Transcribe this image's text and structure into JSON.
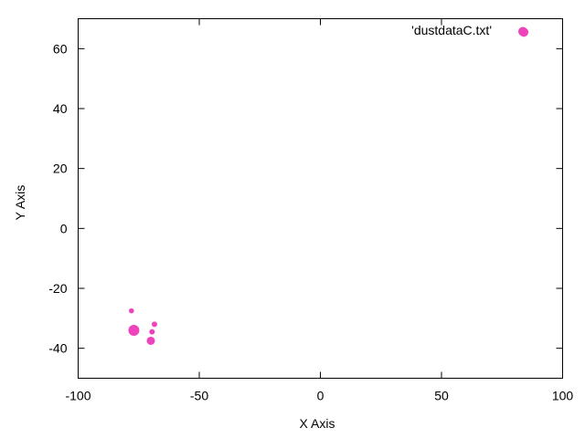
{
  "chart_data": {
    "type": "scatter",
    "title": "",
    "xlabel": "X Axis",
    "ylabel": "Y Axis",
    "xlim": [
      -100,
      100
    ],
    "ylim": [
      -50,
      70
    ],
    "x_ticks": [
      -100,
      -50,
      0,
      50,
      100
    ],
    "y_ticks": [
      -40,
      -20,
      0,
      20,
      40,
      60
    ],
    "x_tick_labels": [
      "-100",
      "-50",
      "0",
      "50",
      "100"
    ],
    "y_tick_labels": [
      "-40",
      "-20",
      "0",
      "20",
      "40",
      "60"
    ],
    "grid": false,
    "legend_position": "top-right",
    "series": [
      {
        "name": "'dustdataC.txt'",
        "color": "#ee44bb",
        "points": [
          {
            "x": -78.0,
            "y": -27.5,
            "size": 2.8
          },
          {
            "x": -77.0,
            "y": -34.0,
            "size": 6.0
          },
          {
            "x": -69.5,
            "y": -34.5,
            "size": 3.0
          },
          {
            "x": -68.5,
            "y": -32.0,
            "size": 3.0
          },
          {
            "x": -70.0,
            "y": -37.5,
            "size": 4.5
          },
          {
            "x": 84.0,
            "y": 65.5,
            "size": 5.0
          }
        ]
      }
    ]
  }
}
